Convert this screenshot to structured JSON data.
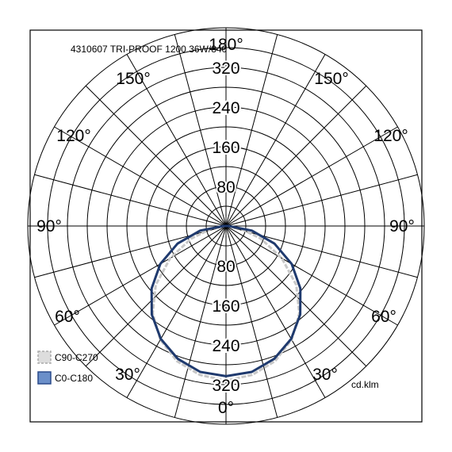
{
  "title": "4310607 TRI-PROOF 1200 36W/840",
  "unit_label": "cd.klm",
  "chart_data": {
    "type": "polar",
    "chart_kind": "photometric polar diagram",
    "title": "4310607 TRI-PROOF 1200 36W/840",
    "unit": "cd.klm",
    "r_range": [
      0,
      400
    ],
    "radial_tick_values": [
      80,
      160,
      240,
      320
    ],
    "radial_ticks_upper": [
      "80",
      "160",
      "240",
      "320"
    ],
    "radial_ticks_lower": [
      "80",
      "160",
      "240",
      "320"
    ],
    "angle_labels": {
      "top": "180°",
      "bottom": "0°",
      "left_upper_150": "150°",
      "right_upper_150": "150°",
      "left_upper_120": "120°",
      "right_upper_120": "120°",
      "left_90": "90°",
      "right_90": "90°",
      "left_lower_60": "60°",
      "right_lower_60": "60°",
      "left_lower_30": "30°",
      "right_lower_30": "30°"
    },
    "angle_grid_step_deg": 15,
    "grid": true,
    "legend_position": "bottom-left",
    "series": [
      {
        "name": "C90-C270",
        "color": "#c8c8c8",
        "style": "dashed",
        "angles_deg": [
          0,
          10,
          20,
          30,
          40,
          50,
          60,
          70,
          80,
          90
        ],
        "values": [
          312,
          305,
          290,
          265,
          230,
          185,
          130,
          75,
          30,
          3
        ]
      },
      {
        "name": "C0-C180",
        "color": "#1f3a6e",
        "style": "solid",
        "angles_deg": [
          0,
          10,
          20,
          30,
          40,
          50,
          60,
          70,
          80,
          90
        ],
        "values": [
          303,
          299,
          285,
          263,
          233,
          196,
          153,
          104,
          53,
          5
        ]
      }
    ],
    "legend": [
      {
        "label": "C90-C270",
        "swatch": "#dddddd",
        "border": "#aaaaaa"
      },
      {
        "label": "C0-C180",
        "swatch": "#6b8fc9",
        "border": "#2a4a8a"
      }
    ]
  }
}
